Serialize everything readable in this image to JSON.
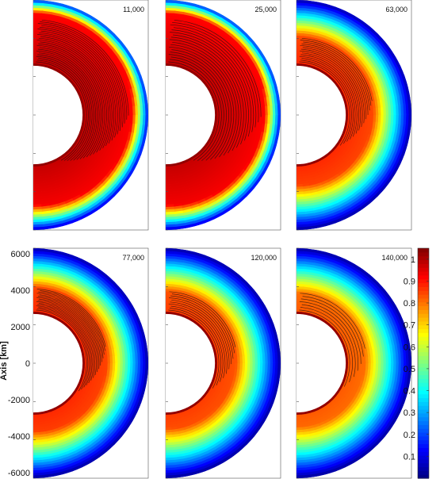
{
  "chart_data": {
    "type": "heatmap",
    "title": "",
    "ylabel": "Axis [km]",
    "ylim": [
      -6300,
      6300
    ],
    "yticks": [
      "6000",
      "4000",
      "2000",
      "0",
      "-2000",
      "-4000",
      "-6000"
    ],
    "inner_radius_km": 2700,
    "outer_radius_km": 6300,
    "colorbar": {
      "min": 0.0,
      "max": 1.05,
      "ticks": [
        "1",
        "0.9",
        "0.8",
        "0.7",
        "0.6",
        "0.5",
        "0.4",
        "0.3",
        "0.2",
        "0.1"
      ],
      "colormap": "jet"
    },
    "panels": [
      {
        "time": "11,000",
        "uniform_level": 0.9,
        "hot_depth": 0.8,
        "flow_lines": 24
      },
      {
        "time": "25,000",
        "uniform_level": 0.9,
        "hot_depth": 0.8,
        "flow_lines": 18
      },
      {
        "time": "63,000",
        "uniform_level": 0.8,
        "hot_depth": 0.45,
        "flow_lines": 14
      },
      {
        "time": "77,000",
        "uniform_level": 0.8,
        "hot_depth": 0.4,
        "flow_lines": 16
      },
      {
        "time": "120,000",
        "uniform_level": 0.78,
        "hot_depth": 0.35,
        "flow_lines": 10
      },
      {
        "time": "140,000",
        "uniform_level": 0.75,
        "hot_depth": 0.32,
        "flow_lines": 7
      }
    ]
  }
}
